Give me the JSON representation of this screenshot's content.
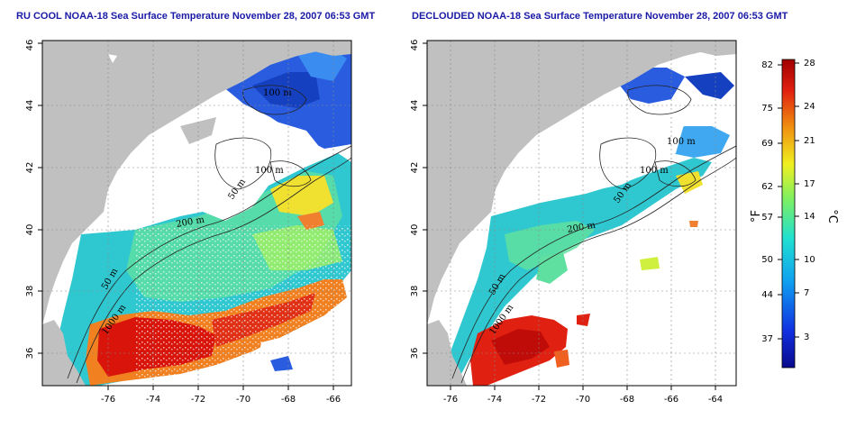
{
  "titles": {
    "left": "RU COOL NOAA-18 Sea Surface Temperature November 28, 2007 06:53 GMT",
    "right": "DECLOUDED NOAA-18 Sea Surface Temperature November 28, 2007 06:53 GMT"
  },
  "axes": {
    "lat_ticks": [
      "36",
      "38",
      "40",
      "42",
      "44",
      "46"
    ],
    "lon_ticks": [
      "-76",
      "-74",
      "-72",
      "-70",
      "-68",
      "-66",
      "-64"
    ]
  },
  "contour_labels": {
    "left": [
      "100 m",
      "100 m",
      "50 m",
      "200 m",
      "50 m",
      "1000 m"
    ],
    "right": [
      "100 m",
      "100 m",
      "50 m",
      "200 m",
      "50 m",
      "1000 m"
    ]
  },
  "colorbar": {
    "fahrenheit_ticks": [
      "82",
      "75",
      "69",
      "62",
      "57",
      "50",
      "44",
      "37"
    ],
    "celsius_ticks": [
      "28",
      "24",
      "21",
      "17",
      "14",
      "10",
      "7",
      "3"
    ],
    "unit_f": "°F",
    "unit_c": "°C"
  },
  "colors": {
    "land": "#c0c0c0",
    "warm": "#d9140a",
    "cool": "#2a5ce0",
    "title": "#1a1aa6"
  }
}
